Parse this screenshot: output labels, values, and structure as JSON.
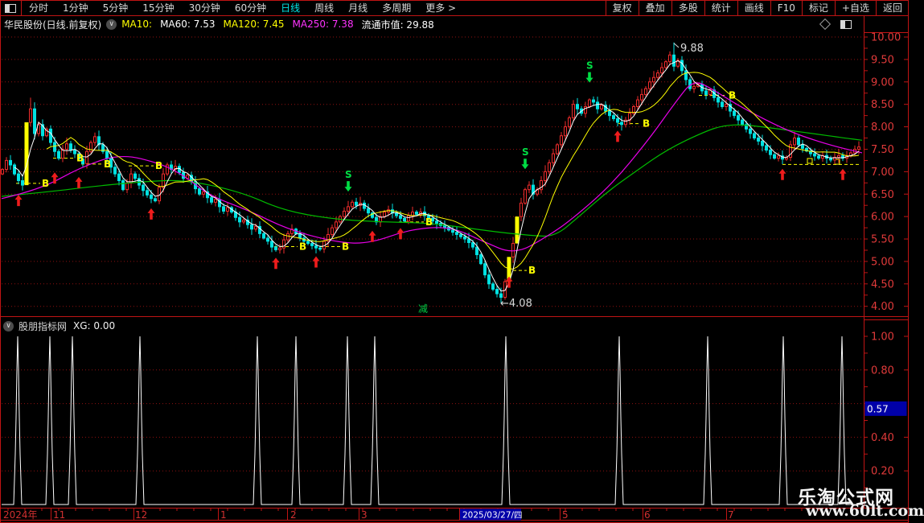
{
  "toolbar": {
    "window_icon": "split-square-icon",
    "left_items": [
      "分时",
      "1分钟",
      "5分钟",
      "15分钟",
      "30分钟",
      "60分钟",
      "日线",
      "周线",
      "月线",
      "多周期",
      "更多 >"
    ],
    "active_item": "日线",
    "right_items": [
      "复权",
      "叠加",
      "多股",
      "统计",
      "画线",
      "F10",
      "标记",
      "+自选",
      "返回"
    ]
  },
  "stock_header": {
    "title": "华民股份(日线.前复权)",
    "ma10": "MA10:",
    "ma60": "MA60: 7.53",
    "ma120": "MA120: 7.45",
    "ma250": "MA250: 7.38",
    "market_cap": "流通市值: 29.88"
  },
  "indicator_header": {
    "name": "股朋指标网",
    "value_label": "XG: 0.00"
  },
  "watermark": {
    "line1": "乐淘公式网",
    "line2": "www.60lt.com"
  },
  "colors": {
    "frame": "#c01414",
    "grid": "#8f1010",
    "axis_text": "#e03a3a",
    "month_text": "#d23030",
    "up": "#ee2c2c",
    "down": "#00e2e2",
    "ma_fast": "#ffffff",
    "ma_mid": "#ffff00",
    "ma_slow": "#e800e8",
    "ma_long": "#00bb00",
    "highlight_bar": "#ffff00",
    "signal_buy": "#ee1c1c",
    "signal_b": "#ffff00",
    "signal_s": "#00dd44",
    "spike_line": "#ffffff",
    "blue_box_bg": "#0000a8",
    "blue_box_text": "#ffffff",
    "annotation_text": "#d8d8d8",
    "reduce_text": "#00cc44"
  },
  "chart_data": [
    {
      "type": "candlestick",
      "title": "华民股份 日线 前复权",
      "x_start": 3,
      "x_step": 5,
      "ylim": [
        4.0,
        10.0
      ],
      "y_tick_step": 0.5,
      "y_tick_labels": [
        "10.00",
        "9.50",
        "9.00",
        "8.50",
        "8.00",
        "7.50",
        "7.00",
        "6.50",
        "6.00",
        "5.50",
        "5.00",
        "4.50",
        "4.00"
      ],
      "closes": [
        7.05,
        7.25,
        7.15,
        6.95,
        6.8,
        6.7,
        8.1,
        8.4,
        7.85,
        8.05,
        7.8,
        7.95,
        7.65,
        7.45,
        7.3,
        7.5,
        7.62,
        7.48,
        7.4,
        7.28,
        7.18,
        7.45,
        7.65,
        7.78,
        7.6,
        7.45,
        7.3,
        7.1,
        6.95,
        6.8,
        6.6,
        6.75,
        6.95,
        6.85,
        6.7,
        6.58,
        6.48,
        6.4,
        6.35,
        6.65,
        6.95,
        7.15,
        7.05,
        7.12,
        6.98,
        6.85,
        6.92,
        6.78,
        6.62,
        6.5,
        6.55,
        6.42,
        6.32,
        6.38,
        6.22,
        6.12,
        6.2,
        6.1,
        5.98,
        5.88,
        5.92,
        5.82,
        5.72,
        5.78,
        5.62,
        5.52,
        5.45,
        5.32,
        5.26,
        5.3,
        5.48,
        5.62,
        5.72,
        5.62,
        5.52,
        5.45,
        5.4,
        5.35,
        5.3,
        5.28,
        5.45,
        5.6,
        5.75,
        5.88,
        6.0,
        6.12,
        6.22,
        6.32,
        6.25,
        6.3,
        6.18,
        6.08,
        5.98,
        5.88,
        6.0,
        6.1,
        6.15,
        6.08,
        6.02,
        5.96,
        5.9,
        6.02,
        6.1,
        6.05,
        6.1,
        6.02,
        5.96,
        5.9,
        5.85,
        5.8,
        5.76,
        5.7,
        5.65,
        5.6,
        5.55,
        5.5,
        5.42,
        5.32,
        5.15,
        4.95,
        4.7,
        4.5,
        4.38,
        4.28,
        4.2,
        4.55,
        5.1,
        5.4,
        6.0,
        6.3,
        6.6,
        6.7,
        6.5,
        6.6,
        6.8,
        7.0,
        7.2,
        7.4,
        7.6,
        7.8,
        8.0,
        8.2,
        8.5,
        8.4,
        8.3,
        8.45,
        8.6,
        8.55,
        8.4,
        8.48,
        8.35,
        8.25,
        8.18,
        8.1,
        8.05,
        8.15,
        8.3,
        8.45,
        8.6,
        8.72,
        8.85,
        9.0,
        9.1,
        9.2,
        9.32,
        9.45,
        9.6,
        9.35,
        9.48,
        9.25,
        9.05,
        8.85,
        8.9,
        8.95,
        8.8,
        8.72,
        8.82,
        8.65,
        8.55,
        8.45,
        8.5,
        8.35,
        8.25,
        8.15,
        8.05,
        7.95,
        7.85,
        7.75,
        7.68,
        7.58,
        7.48,
        7.38,
        7.3,
        7.35,
        7.28,
        7.32,
        7.6,
        7.75,
        7.6,
        7.52,
        7.46,
        7.4,
        7.35,
        7.3,
        7.36,
        7.3,
        7.26,
        7.32,
        7.36,
        7.3,
        7.35,
        7.42,
        7.5,
        7.55,
        7.65
      ],
      "yellow_indices": [
        6,
        126,
        128
      ],
      "overrides": {
        "7": {
          "high": 8.65
        },
        "124": {
          "low": 4.08
        },
        "167": {
          "high": 9.88
        }
      },
      "ma_windows": {
        "fast": 4,
        "mid": 12
      },
      "ma_slow_anchors": [
        [
          2,
          6.4
        ],
        [
          50,
          6.6
        ],
        [
          100,
          7.1
        ],
        [
          150,
          7.4
        ],
        [
          200,
          7.18
        ],
        [
          230,
          6.9
        ],
        [
          260,
          6.47
        ],
        [
          310,
          6.13
        ],
        [
          360,
          5.7
        ],
        [
          420,
          5.42
        ],
        [
          460,
          5.4
        ],
        [
          510,
          5.72
        ],
        [
          560,
          5.78
        ],
        [
          600,
          5.45
        ],
        [
          640,
          5.15
        ],
        [
          680,
          5.55
        ],
        [
          710,
          5.92
        ],
        [
          760,
          6.7
        ],
        [
          807,
          7.72
        ],
        [
          840,
          8.55
        ],
        [
          862,
          9.05
        ],
        [
          885,
          8.85
        ],
        [
          920,
          8.45
        ],
        [
          980,
          7.9
        ],
        [
          1030,
          7.6
        ],
        [
          1072,
          7.42
        ]
      ],
      "ma_long_anchors": [
        [
          2,
          6.45
        ],
        [
          60,
          6.55
        ],
        [
          120,
          6.68
        ],
        [
          180,
          6.78
        ],
        [
          230,
          6.82
        ],
        [
          300,
          6.55
        ],
        [
          350,
          6.15
        ],
        [
          410,
          5.95
        ],
        [
          470,
          5.88
        ],
        [
          530,
          5.86
        ],
        [
          580,
          5.75
        ],
        [
          620,
          5.65
        ],
        [
          660,
          5.58
        ],
        [
          690,
          5.55
        ],
        [
          720,
          6.0
        ],
        [
          755,
          6.55
        ],
        [
          790,
          7.0
        ],
        [
          830,
          7.5
        ],
        [
          877,
          7.9
        ],
        [
          900,
          8.03
        ],
        [
          925,
          8.05
        ],
        [
          970,
          7.95
        ],
        [
          1010,
          7.85
        ],
        [
          1050,
          7.75
        ],
        [
          1072,
          7.7
        ]
      ],
      "buy_arrows": [
        [
          23,
          6.52
        ],
        [
          68,
          7.02
        ],
        [
          98,
          6.92
        ],
        [
          188,
          6.22
        ],
        [
          343,
          5.12
        ],
        [
          393,
          5.15
        ],
        [
          463,
          5.72
        ],
        [
          498,
          5.78
        ],
        [
          633,
          4.7
        ],
        [
          768,
          7.95
        ],
        [
          973,
          7.1
        ],
        [
          1048,
          7.1
        ]
      ],
      "b_markers": [
        [
          56,
          6.74,
          20
        ],
        [
          99,
          7.3,
          66
        ],
        [
          133,
          7.17,
          101
        ],
        [
          197,
          7.13,
          160
        ],
        [
          376,
          5.33,
          341
        ],
        [
          429,
          5.33,
          391
        ],
        [
          533,
          5.88,
          496
        ],
        [
          661,
          4.8,
          631
        ],
        [
          803,
          8.07,
          769
        ],
        [
          910,
          8.7,
          869
        ]
      ],
      "b_dash_right": {
        "x0": 973,
        "x1": 1070,
        "p": 7.16,
        "squares": [
          [
            1007,
            7.24
          ],
          [
            1041,
            7.22
          ]
        ]
      },
      "s_markers": [
        [
          433,
          6.52
        ],
        [
          653,
          7.02
        ],
        [
          733,
          8.95
        ]
      ],
      "reduce_marker": {
        "label": "减",
        "x": 527,
        "y": 388
      },
      "annotations": {
        "high": {
          "text": "9.88",
          "x": 846,
          "y": 64,
          "price": 9.88,
          "bar_x": 838
        },
        "low": {
          "text": "←4.08",
          "x": 622,
          "y": 381,
          "price": 4.08,
          "bar_x": 623
        }
      }
    },
    {
      "type": "impulse-line",
      "name": "XG",
      "current_value": "0.00",
      "ylim": [
        0,
        1.0
      ],
      "gridlines": [
        0.2,
        0.4,
        0.6,
        0.8
      ],
      "axis_labels": [
        [
          "1.00",
          1.0
        ],
        [
          "0.80",
          0.8
        ],
        [
          "0.40",
          0.4
        ],
        [
          "0.20",
          0.2
        ]
      ],
      "highlight": {
        "value": "0.57",
        "y": 0.57
      },
      "spikes_x": [
        22,
        62,
        90,
        174,
        320,
        368,
        432,
        466,
        629,
        770,
        880,
        974,
        1047
      ]
    }
  ],
  "date_axis": {
    "year_label": "2024年",
    "months": [
      [
        "11",
        66
      ],
      [
        "12",
        168
      ],
      [
        "1",
        274
      ],
      [
        "2",
        361
      ],
      [
        "3",
        449
      ],
      [
        "5",
        699
      ],
      [
        "6",
        801
      ],
      [
        "7",
        905
      ]
    ],
    "separators": [
      63,
      166,
      271,
      357,
      446,
      571,
      696,
      799,
      903
    ],
    "selected_date": {
      "label": "2025/03/27/四",
      "x": 572,
      "w": 76
    }
  }
}
